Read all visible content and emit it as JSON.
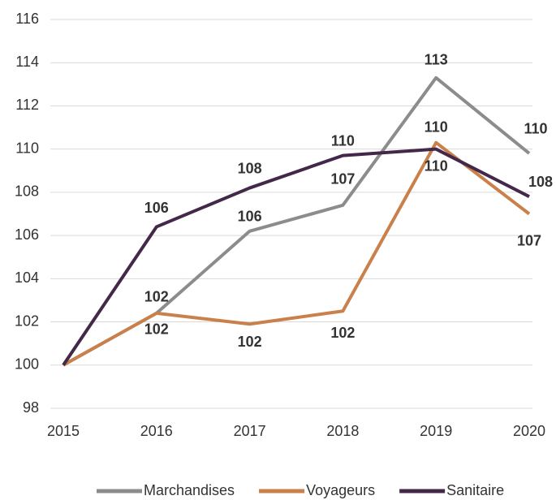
{
  "chart_data": {
    "type": "line",
    "categories": [
      "2015",
      "2016",
      "2017",
      "2018",
      "2019",
      "2020"
    ],
    "series": [
      {
        "name": "Marchandises",
        "color": "#8c8c8c",
        "values": [
          100,
          102.4,
          106.2,
          107.4,
          113.3,
          109.8
        ],
        "value_labels": [
          null,
          "102",
          "106",
          "107",
          "113",
          "110"
        ]
      },
      {
        "name": "Voyageurs",
        "color": "#c9804a",
        "values": [
          100,
          102.4,
          101.9,
          102.5,
          110.3,
          107.0
        ],
        "value_labels": [
          null,
          "102",
          "102",
          "102",
          "110",
          "107"
        ]
      },
      {
        "name": "Sanitaire",
        "color": "#44284a",
        "values": [
          100,
          106.4,
          108.2,
          109.7,
          110.0,
          107.8
        ],
        "value_labels": [
          null,
          "106",
          "108",
          "110",
          "110",
          "108"
        ]
      }
    ],
    "ylim": [
      98,
      116
    ],
    "yticks": [
      98,
      100,
      102,
      104,
      106,
      108,
      110,
      112,
      114,
      116
    ],
    "grid": true,
    "legend": "bottom"
  }
}
